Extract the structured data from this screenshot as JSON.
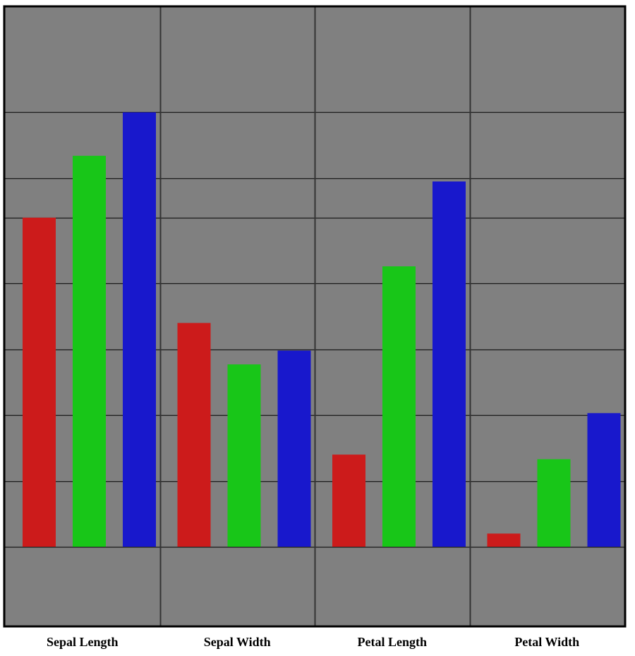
{
  "chart_data": {
    "type": "bar",
    "categories": [
      "Sepal Length",
      "Sepal Width",
      "Petal Length",
      "Petal Width"
    ],
    "series": [
      {
        "values": [
          5.0,
          3.4,
          1.4,
          0.2
        ],
        "color": "#cc1b1b"
      },
      {
        "values": [
          5.94,
          2.77,
          4.26,
          1.33
        ],
        "color": "#18c618"
      },
      {
        "values": [
          6.6,
          2.98,
          5.55,
          2.03
        ],
        "color": "#1818cc"
      }
    ],
    "y_baseline": 0.0,
    "y_max": 7.0,
    "ylim": [
      -1.2,
      8.2
    ],
    "gridlines": [
      0.0,
      1.0,
      2.0,
      3.0,
      4.0,
      5.0,
      5.6,
      6.6
    ],
    "grid": true,
    "legend": "none",
    "colors": {
      "plot_background": "#808080",
      "grid_line": "#1a1a1a",
      "category_divider": "#333333",
      "border": "#000000"
    }
  }
}
